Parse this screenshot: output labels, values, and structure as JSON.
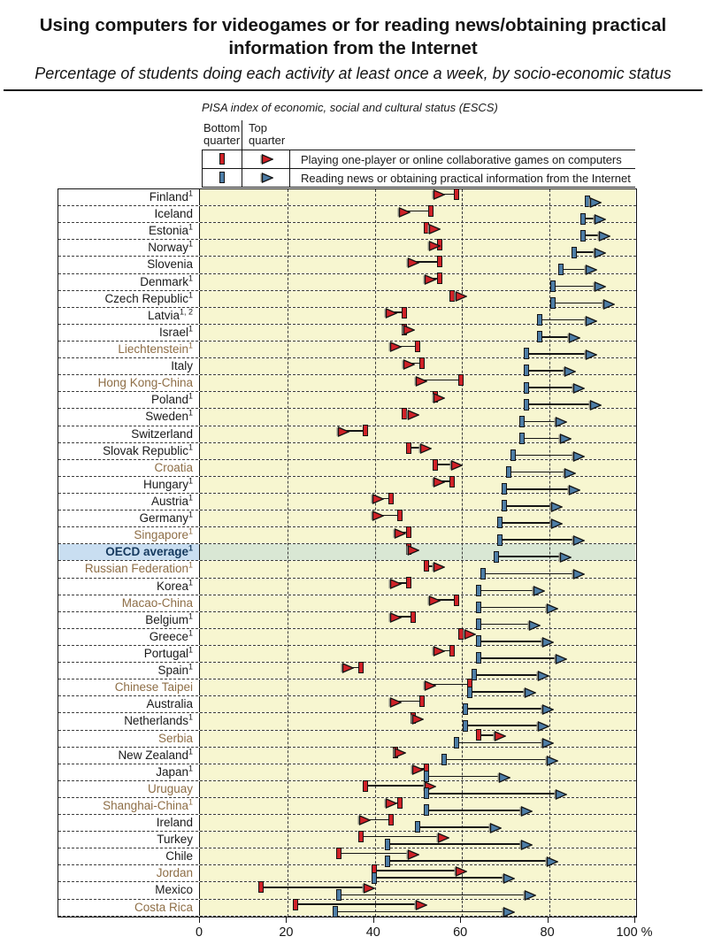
{
  "header": {
    "title": "Using computers for videogames or for reading news/obtaining practical information from the Internet",
    "subtitle": "Percentage of students doing each activity at least once a week, by socio-economic status"
  },
  "colors": {
    "games": "#cf2127",
    "news": "#4d7da6",
    "plot_bg": "#f7f6d0",
    "highlight_label_bg": "#c9def1",
    "highlight_plot_bg": "#d9e7d4",
    "partner_text": "#8e6e46",
    "highlight_text": "#15395e"
  },
  "chart_data": {
    "type": "dumbbell",
    "title": "Using computers for videogames or for reading news/obtaining practical information from the Internet",
    "subtitle": "Percentage of students doing each activity at least once a week, by socio-economic status",
    "index_label": "PISA index of economic, social and cultural status (ESCS)",
    "legend": {
      "bottom_quarter": "Bottom quarter",
      "top_quarter": "Top quarter",
      "series": [
        {
          "id": "games",
          "label": "Playing one-player or online collaborative games on computers",
          "color": "#cf2127"
        },
        {
          "id": "news",
          "label": "Reading news or obtaining practical information from the Internet",
          "color": "#4d7da6"
        }
      ]
    },
    "xlim": [
      0,
      100
    ],
    "x_ticks": [
      0,
      20,
      40,
      60,
      80,
      100
    ],
    "x_unit": "%",
    "grid": true,
    "countries": [
      {
        "name": "Finland",
        "footnote": "1",
        "games": {
          "bottom": 59,
          "top": 55
        },
        "news": {
          "bottom": 89,
          "top": 91
        }
      },
      {
        "name": "Iceland",
        "footnote": "",
        "games": {
          "bottom": 53,
          "top": 47
        },
        "news": {
          "bottom": 88,
          "top": 92
        }
      },
      {
        "name": "Estonia",
        "footnote": "1",
        "games": {
          "bottom": 52,
          "top": 54
        },
        "news": {
          "bottom": 88,
          "top": 93
        }
      },
      {
        "name": "Norway",
        "footnote": "1",
        "games": {
          "bottom": 55,
          "top": 54
        },
        "news": {
          "bottom": 86,
          "top": 92
        }
      },
      {
        "name": "Slovenia",
        "footnote": "",
        "games": {
          "bottom": 55,
          "top": 49
        },
        "news": {
          "bottom": 83,
          "top": 90
        }
      },
      {
        "name": "Denmark",
        "footnote": "1",
        "games": {
          "bottom": 55,
          "top": 53
        },
        "news": {
          "bottom": 81,
          "top": 92
        }
      },
      {
        "name": "Czech Republic",
        "footnote": "1",
        "games": {
          "bottom": 58,
          "top": 60
        },
        "news": {
          "bottom": 81,
          "top": 94
        }
      },
      {
        "name": "Latvia",
        "footnote": "1, 2",
        "games": {
          "bottom": 47,
          "top": 44
        },
        "news": {
          "bottom": 78,
          "top": 90
        }
      },
      {
        "name": "Israel",
        "footnote": "1",
        "games": {
          "bottom": 47,
          "top": 48
        },
        "news": {
          "bottom": 78,
          "top": 86
        }
      },
      {
        "name": "Liechtenstein",
        "footnote": "1",
        "partner": true,
        "games": {
          "bottom": 50,
          "top": 45
        },
        "news": {
          "bottom": 75,
          "top": 90
        }
      },
      {
        "name": "Italy",
        "footnote": "",
        "games": {
          "bottom": 51,
          "top": 48
        },
        "news": {
          "bottom": 75,
          "top": 85
        }
      },
      {
        "name": "Hong Kong-China",
        "footnote": "",
        "partner": true,
        "games": {
          "bottom": 60,
          "top": 51
        },
        "news": {
          "bottom": 75,
          "top": 87
        }
      },
      {
        "name": "Poland",
        "footnote": "1",
        "games": {
          "bottom": 54,
          "top": 55
        },
        "news": {
          "bottom": 75,
          "top": 91
        }
      },
      {
        "name": "Sweden",
        "footnote": "1",
        "games": {
          "bottom": 47,
          "top": 49
        },
        "news": {
          "bottom": 74,
          "top": 83
        }
      },
      {
        "name": "Switzerland",
        "footnote": "",
        "games": {
          "bottom": 38,
          "top": 33
        },
        "news": {
          "bottom": 74,
          "top": 84
        }
      },
      {
        "name": "Slovak Republic",
        "footnote": "1",
        "games": {
          "bottom": 48,
          "top": 52
        },
        "news": {
          "bottom": 72,
          "top": 87
        }
      },
      {
        "name": "Croatia",
        "footnote": "",
        "partner": true,
        "games": {
          "bottom": 54,
          "top": 59
        },
        "news": {
          "bottom": 71,
          "top": 85
        }
      },
      {
        "name": "Hungary",
        "footnote": "1",
        "games": {
          "bottom": 58,
          "top": 55
        },
        "news": {
          "bottom": 70,
          "top": 86
        }
      },
      {
        "name": "Austria",
        "footnote": "1",
        "games": {
          "bottom": 44,
          "top": 41
        },
        "news": {
          "bottom": 70,
          "top": 82
        }
      },
      {
        "name": "Germany",
        "footnote": "1",
        "games": {
          "bottom": 46,
          "top": 41
        },
        "news": {
          "bottom": 69,
          "top": 82
        }
      },
      {
        "name": "Singapore",
        "footnote": "1",
        "partner": true,
        "games": {
          "bottom": 48,
          "top": 46
        },
        "news": {
          "bottom": 69,
          "top": 87
        }
      },
      {
        "name": "OECD average",
        "footnote": "1",
        "highlight": true,
        "games": {
          "bottom": 48,
          "top": 49
        },
        "news": {
          "bottom": 68,
          "top": 84
        }
      },
      {
        "name": "Russian Federation",
        "footnote": "1",
        "partner": true,
        "games": {
          "bottom": 52,
          "top": 55
        },
        "news": {
          "bottom": 65,
          "top": 87
        }
      },
      {
        "name": "Korea",
        "footnote": "1",
        "games": {
          "bottom": 48,
          "top": 45
        },
        "news": {
          "bottom": 64,
          "top": 78
        }
      },
      {
        "name": "Macao-China",
        "footnote": "",
        "partner": true,
        "games": {
          "bottom": 59,
          "top": 54
        },
        "news": {
          "bottom": 64,
          "top": 81
        }
      },
      {
        "name": "Belgium",
        "footnote": "1",
        "games": {
          "bottom": 49,
          "top": 45
        },
        "news": {
          "bottom": 64,
          "top": 77
        }
      },
      {
        "name": "Greece",
        "footnote": "1",
        "games": {
          "bottom": 60,
          "top": 62
        },
        "news": {
          "bottom": 64,
          "top": 80
        }
      },
      {
        "name": "Portugal",
        "footnote": "1",
        "games": {
          "bottom": 58,
          "top": 55
        },
        "news": {
          "bottom": 64,
          "top": 83
        }
      },
      {
        "name": "Spain",
        "footnote": "1",
        "games": {
          "bottom": 37,
          "top": 34
        },
        "news": {
          "bottom": 63,
          "top": 79
        }
      },
      {
        "name": "Chinese Taipei",
        "footnote": "",
        "partner": true,
        "games": {
          "bottom": 62,
          "top": 53
        },
        "news": {
          "bottom": 62,
          "top": 76
        }
      },
      {
        "name": "Australia",
        "footnote": "",
        "games": {
          "bottom": 51,
          "top": 45
        },
        "news": {
          "bottom": 61,
          "top": 80
        }
      },
      {
        "name": "Netherlands",
        "footnote": "1",
        "games": {
          "bottom": 49,
          "top": 50
        },
        "news": {
          "bottom": 61,
          "top": 79
        }
      },
      {
        "name": "Serbia",
        "footnote": "",
        "partner": true,
        "games": {
          "bottom": 64,
          "top": 69
        },
        "news": {
          "bottom": 59,
          "top": 80
        }
      },
      {
        "name": "New Zealand",
        "footnote": "1",
        "games": {
          "bottom": 45,
          "top": 46
        },
        "news": {
          "bottom": 56,
          "top": 81
        }
      },
      {
        "name": "Japan",
        "footnote": "1",
        "games": {
          "bottom": 52,
          "top": 50
        },
        "news": {
          "bottom": 52,
          "top": 70
        }
      },
      {
        "name": "Uruguay",
        "footnote": "",
        "partner": true,
        "games": {
          "bottom": 38,
          "top": 53
        },
        "news": {
          "bottom": 52,
          "top": 83
        }
      },
      {
        "name": "Shanghai-China",
        "footnote": "1",
        "partner": true,
        "games": {
          "bottom": 46,
          "top": 44
        },
        "news": {
          "bottom": 52,
          "top": 75
        }
      },
      {
        "name": "Ireland",
        "footnote": "",
        "games": {
          "bottom": 44,
          "top": 38
        },
        "news": {
          "bottom": 50,
          "top": 68
        }
      },
      {
        "name": "Turkey",
        "footnote": "",
        "games": {
          "bottom": 37,
          "top": 56
        },
        "news": {
          "bottom": 43,
          "top": 75
        }
      },
      {
        "name": "Chile",
        "footnote": "",
        "games": {
          "bottom": 32,
          "top": 49
        },
        "news": {
          "bottom": 43,
          "top": 81
        }
      },
      {
        "name": "Jordan",
        "footnote": "",
        "partner": true,
        "games": {
          "bottom": 40,
          "top": 60
        },
        "news": {
          "bottom": 40,
          "top": 71
        }
      },
      {
        "name": "Mexico",
        "footnote": "",
        "games": {
          "bottom": 14,
          "top": 39
        },
        "news": {
          "bottom": 32,
          "top": 76
        }
      },
      {
        "name": "Costa Rica",
        "footnote": "",
        "partner": true,
        "games": {
          "bottom": 22,
          "top": 51
        },
        "news": {
          "bottom": 31,
          "top": 71
        }
      }
    ]
  }
}
